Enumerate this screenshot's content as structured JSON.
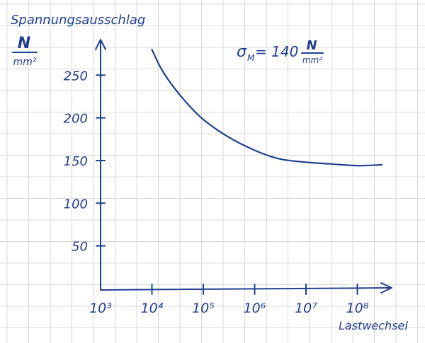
{
  "chart_data": {
    "type": "line",
    "ylabel": "Spannungsausschlag",
    "yunit_numerator": "N",
    "yunit_denominator": "mm²",
    "xlabel": "Lastwechsel",
    "x_tick_labels": [
      "10³",
      "10⁴",
      "10⁵",
      "10⁶",
      "10⁷",
      "10⁸"
    ],
    "y_ticks": [
      50,
      100,
      150,
      200,
      250
    ],
    "y_tick_labels": [
      "50",
      "100",
      "150",
      "200",
      "250"
    ],
    "xscale": "log",
    "xlim_exp": [
      3,
      8.6
    ],
    "ylim": [
      0,
      290
    ],
    "grid": true,
    "annotation": {
      "symbol": "σ",
      "subscript": "M",
      "text": "= 140",
      "unit_numerator": "N",
      "unit_denominator": "mm²"
    },
    "series": [
      {
        "values": [
          {
            "x": 10000,
            "y": 280
          },
          {
            "x": 15000,
            "y": 258
          },
          {
            "x": 25000,
            "y": 238
          },
          {
            "x": 50000,
            "y": 216
          },
          {
            "x": 100000,
            "y": 198
          },
          {
            "x": 300000,
            "y": 178
          },
          {
            "x": 1000000,
            "y": 162
          },
          {
            "x": 3000000,
            "y": 152
          },
          {
            "x": 10000000,
            "y": 148
          },
          {
            "x": 30000000,
            "y": 146
          },
          {
            "x": 100000000,
            "y": 144
          },
          {
            "x": 300000000,
            "y": 145
          }
        ]
      }
    ]
  },
  "colors": {
    "ink": "#1f3f8f",
    "grid": "#d9d9d9"
  }
}
